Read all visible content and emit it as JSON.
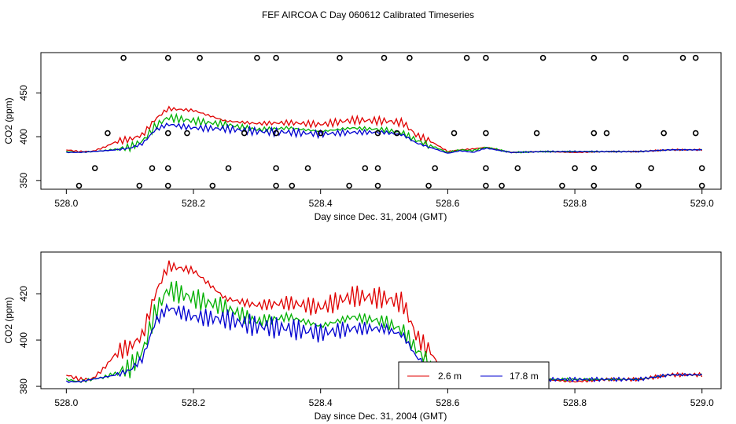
{
  "figure_title": "FEF AIRCOA C  Day 060612  Calibrated Timeseries",
  "chart_data": [
    {
      "type": "line",
      "ylabel": "CO2 (ppm)",
      "xlabel": "Day since Dec. 31, 2004 (GMT)",
      "xlim": [
        527.96,
        529.03
      ],
      "ylim": [
        340,
        496
      ],
      "xticks": [
        528.0,
        528.2,
        528.4,
        528.6,
        528.8,
        529.0
      ],
      "xtick_labels": [
        "528.0",
        "528.2",
        "528.4",
        "528.6",
        "528.8",
        "529.0"
      ],
      "yticks": [
        350,
        400,
        450
      ],
      "ytick_labels": [
        "350",
        "400",
        "450"
      ],
      "colors": {
        "red": "#e00000",
        "green": "#00b000",
        "blue": "#0000d0",
        "marker": "#000000"
      },
      "series_keyframes": {
        "x": [
          528.0,
          528.02,
          528.04,
          528.06,
          528.08,
          528.1,
          528.12,
          528.14,
          528.16,
          528.2,
          528.25,
          528.3,
          528.35,
          528.4,
          528.45,
          528.5,
          528.53,
          528.55,
          528.58,
          528.6,
          528.62,
          528.64,
          528.66,
          528.7,
          528.75,
          528.8,
          528.85,
          528.9,
          528.95,
          529.0
        ],
        "red": [
          385,
          383,
          383,
          388,
          395,
          397,
          402,
          420,
          432,
          430,
          418,
          415,
          416,
          414,
          419,
          418,
          416,
          402,
          392,
          383,
          385,
          386,
          388,
          382,
          383,
          382,
          383,
          383,
          385,
          385
        ],
        "green": [
          383,
          382,
          383,
          384,
          386,
          388,
          395,
          412,
          422,
          418,
          414,
          408,
          410,
          406,
          410,
          408,
          404,
          396,
          388,
          382,
          385,
          384,
          388,
          382,
          383,
          383,
          383,
          383,
          385,
          385
        ],
        "blue": [
          382,
          382,
          383,
          384,
          385,
          387,
          392,
          408,
          414,
          410,
          409,
          406,
          405,
          403,
          405,
          405,
          402,
          393,
          386,
          381,
          384,
          382,
          387,
          382,
          383,
          383,
          383,
          383,
          385,
          385
        ]
      },
      "calibration_markers": {
        "top_y": 490,
        "upper_y": 404,
        "mid_y": 364,
        "low_y": 344,
        "top_x": [
          528.09,
          528.16,
          528.21,
          528.3,
          528.33,
          528.43,
          528.5,
          528.54,
          528.63,
          528.66,
          528.75,
          528.83,
          528.88,
          528.97,
          528.99
        ],
        "upper_x": [
          528.065,
          528.16,
          528.19,
          528.28,
          528.33,
          528.4,
          528.49,
          528.52,
          528.61,
          528.66,
          528.74,
          528.83,
          528.85,
          528.94,
          528.99
        ],
        "mid_x": [
          528.045,
          528.135,
          528.16,
          528.255,
          528.33,
          528.38,
          528.47,
          528.49,
          528.58,
          528.66,
          528.71,
          528.8,
          528.83,
          528.92,
          529.0
        ],
        "low_x": [
          528.02,
          528.115,
          528.16,
          528.23,
          528.33,
          528.355,
          528.445,
          528.49,
          528.57,
          528.66,
          528.685,
          528.78,
          528.83,
          528.9,
          529.0
        ]
      }
    },
    {
      "type": "line",
      "ylabel": "CO2 (ppm)",
      "xlabel": "Day since Dec. 31, 2004 (GMT)",
      "xlim": [
        527.96,
        529.03
      ],
      "ylim": [
        379,
        438
      ],
      "xticks": [
        528.0,
        528.2,
        528.4,
        528.6,
        528.8,
        529.0
      ],
      "xtick_labels": [
        "528.0",
        "528.2",
        "528.4",
        "528.6",
        "528.8",
        "529.0"
      ],
      "yticks": [
        380,
        400,
        420
      ],
      "ytick_labels": [
        "380",
        "400",
        "420"
      ],
      "series": [
        {
          "name": "2.6 m",
          "color": "#e00000"
        },
        {
          "name": "17.8 m",
          "color": "#0000d0"
        }
      ],
      "legend": [
        "2.6 m",
        "17.8 m"
      ],
      "legend_position": "bottom-center"
    }
  ]
}
